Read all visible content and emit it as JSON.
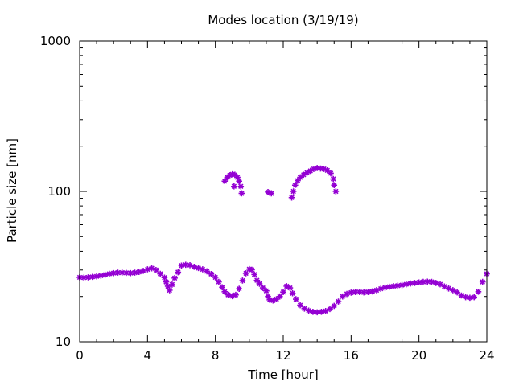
{
  "chart_data": {
    "type": "scatter",
    "title": "Modes location (3/19/19)",
    "xlabel": "Time [hour]",
    "ylabel": "Particle size [nm]",
    "xlim": [
      0,
      24
    ],
    "ylim": [
      10,
      1000
    ],
    "yscale": "log",
    "x_ticks": [
      0,
      4,
      8,
      12,
      16,
      20,
      24
    ],
    "x_tick_labels": [
      "0",
      "4",
      "8",
      "12",
      "16",
      "20",
      "24"
    ],
    "y_ticks": [
      10,
      100,
      1000
    ],
    "y_tick_labels": [
      "10",
      "100",
      "1000"
    ],
    "grid": false,
    "legend": "none",
    "marker_color": "#9400d3",
    "series": [
      {
        "points": [
          [
            0.0,
            26.8
          ],
          [
            0.25,
            26.7
          ],
          [
            0.5,
            26.8
          ],
          [
            0.75,
            27.0
          ],
          [
            1.0,
            27.2
          ],
          [
            1.25,
            27.5
          ],
          [
            1.5,
            27.9
          ],
          [
            1.75,
            28.3
          ],
          [
            2.0,
            28.6
          ],
          [
            2.25,
            28.8
          ],
          [
            2.5,
            28.8
          ],
          [
            2.75,
            28.7
          ],
          [
            3.0,
            28.6
          ],
          [
            3.25,
            28.8
          ],
          [
            3.5,
            29.1
          ],
          [
            3.75,
            29.6
          ],
          [
            4.0,
            30.3
          ],
          [
            4.25,
            30.8
          ],
          [
            4.5,
            30.0
          ],
          [
            4.75,
            28.3
          ],
          [
            5.0,
            26.7
          ],
          [
            5.1,
            25.0
          ],
          [
            5.2,
            23.4
          ],
          [
            5.3,
            22.0
          ],
          [
            5.45,
            24.0
          ],
          [
            5.6,
            26.5
          ],
          [
            5.8,
            29.0
          ],
          [
            6.0,
            32.1
          ],
          [
            6.25,
            32.5
          ],
          [
            6.5,
            32.3
          ],
          [
            6.75,
            31.5
          ],
          [
            7.0,
            30.9
          ],
          [
            7.25,
            30.3
          ],
          [
            7.5,
            29.4
          ],
          [
            7.75,
            28.2
          ],
          [
            8.0,
            26.8
          ],
          [
            8.2,
            25.0
          ],
          [
            8.4,
            23.0
          ],
          [
            8.55,
            21.5
          ],
          [
            8.75,
            20.5
          ],
          [
            9.0,
            20.1
          ],
          [
            9.2,
            20.5
          ],
          [
            9.4,
            22.5
          ],
          [
            9.6,
            25.5
          ],
          [
            9.8,
            28.5
          ],
          [
            10.0,
            30.4
          ],
          [
            10.15,
            30.1
          ],
          [
            10.3,
            28.0
          ],
          [
            10.45,
            25.6
          ],
          [
            10.6,
            24.3
          ],
          [
            10.8,
            22.8
          ],
          [
            11.0,
            21.8
          ],
          [
            11.1,
            20.0
          ],
          [
            11.2,
            19.0
          ],
          [
            11.4,
            18.8
          ],
          [
            11.6,
            19.2
          ],
          [
            11.8,
            20.0
          ],
          [
            12.0,
            21.4
          ],
          [
            12.2,
            23.4
          ],
          [
            12.4,
            22.8
          ],
          [
            12.55,
            21.0
          ],
          [
            12.75,
            19.2
          ],
          [
            13.0,
            17.5
          ],
          [
            13.25,
            16.6
          ],
          [
            13.5,
            16.1
          ],
          [
            13.75,
            15.8
          ],
          [
            14.0,
            15.7
          ],
          [
            14.25,
            15.8
          ],
          [
            14.5,
            16.0
          ],
          [
            14.75,
            16.5
          ],
          [
            15.0,
            17.3
          ],
          [
            15.25,
            18.5
          ],
          [
            15.5,
            20.0
          ],
          [
            15.75,
            20.8
          ],
          [
            16.0,
            21.2
          ],
          [
            16.25,
            21.4
          ],
          [
            16.5,
            21.4
          ],
          [
            16.75,
            21.3
          ],
          [
            17.0,
            21.4
          ],
          [
            17.25,
            21.6
          ],
          [
            17.5,
            22.0
          ],
          [
            17.75,
            22.5
          ],
          [
            18.0,
            22.9
          ],
          [
            18.25,
            23.2
          ],
          [
            18.5,
            23.4
          ],
          [
            18.75,
            23.6
          ],
          [
            19.0,
            23.8
          ],
          [
            19.25,
            24.1
          ],
          [
            19.5,
            24.4
          ],
          [
            19.75,
            24.6
          ],
          [
            20.0,
            24.8
          ],
          [
            20.25,
            25.0
          ],
          [
            20.5,
            25.1
          ],
          [
            20.75,
            25.0
          ],
          [
            21.0,
            24.6
          ],
          [
            21.25,
            24.1
          ],
          [
            21.5,
            23.3
          ],
          [
            21.75,
            22.6
          ],
          [
            22.0,
            22.0
          ],
          [
            22.25,
            21.3
          ],
          [
            22.5,
            20.3
          ],
          [
            22.75,
            19.8
          ],
          [
            23.0,
            19.6
          ],
          [
            23.25,
            19.8
          ],
          [
            23.5,
            21.5
          ],
          [
            23.75,
            25.0
          ],
          [
            24.0,
            28.3
          ]
        ]
      },
      {
        "points": [
          [
            8.55,
            117
          ],
          [
            8.7,
            124
          ],
          [
            8.85,
            128
          ],
          [
            9.0,
            130
          ],
          [
            9.15,
            129
          ],
          [
            9.3,
            124
          ],
          [
            9.4,
            117
          ],
          [
            9.5,
            108
          ],
          [
            9.55,
            97
          ],
          [
            9.1,
            108
          ],
          [
            11.1,
            99
          ],
          [
            11.2,
            98
          ],
          [
            11.3,
            97
          ],
          [
            12.5,
            91
          ],
          [
            12.6,
            100
          ],
          [
            12.7,
            110
          ],
          [
            12.85,
            118
          ],
          [
            13.0,
            124
          ],
          [
            13.2,
            129
          ],
          [
            13.4,
            133
          ],
          [
            13.6,
            137
          ],
          [
            13.8,
            141
          ],
          [
            14.0,
            143
          ],
          [
            14.2,
            142
          ],
          [
            14.4,
            141
          ],
          [
            14.6,
            138
          ],
          [
            14.8,
            132
          ],
          [
            14.95,
            121
          ],
          [
            15.0,
            110
          ],
          [
            15.1,
            100
          ]
        ]
      }
    ]
  }
}
